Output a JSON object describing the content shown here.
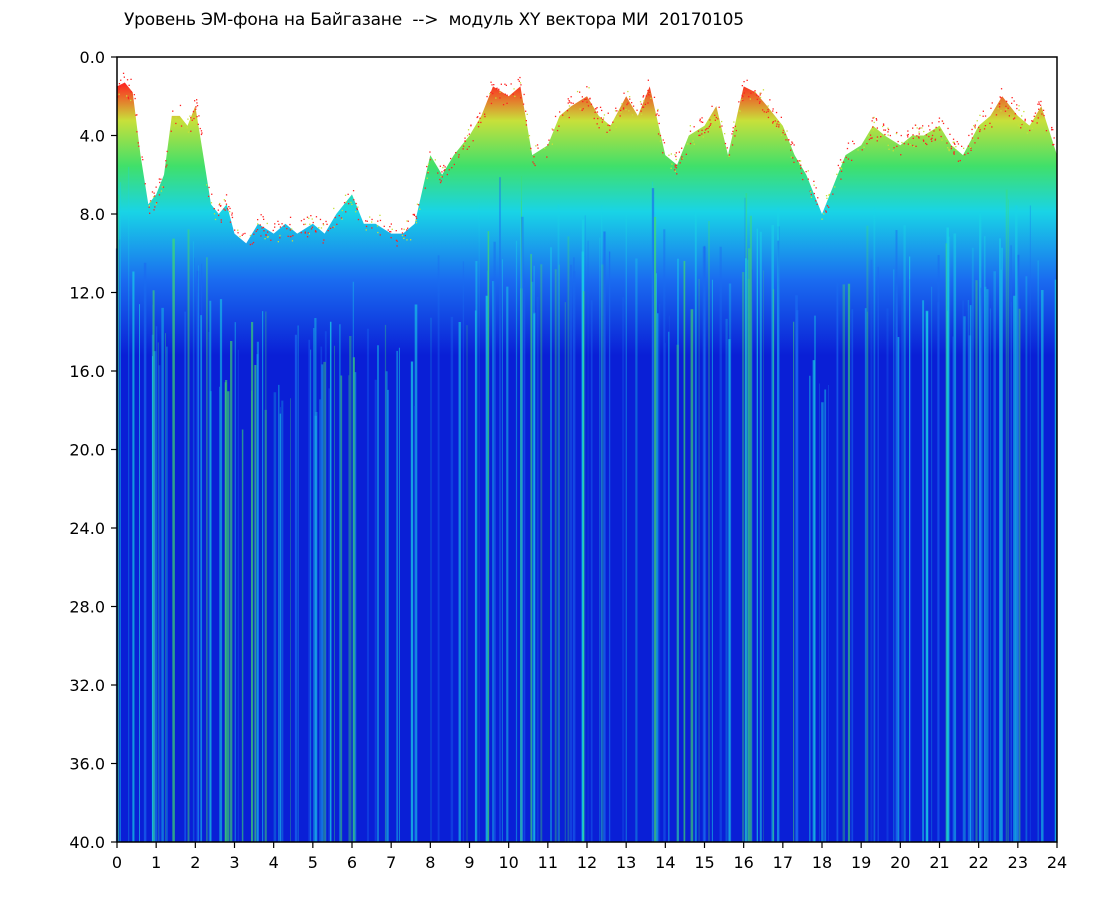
{
  "chart_data": {
    "type": "heatmap",
    "title": "Уровень ЭМ-фона на Байгазане  -->  модуль XY вектора МИ  20170105",
    "xlabel": "",
    "ylabel": "",
    "xlim": [
      0,
      24
    ],
    "ylim": [
      0,
      40
    ],
    "y_inverted": true,
    "x_ticks": [
      0,
      1,
      2,
      3,
      4,
      5,
      6,
      7,
      8,
      9,
      10,
      11,
      12,
      13,
      14,
      15,
      16,
      17,
      18,
      19,
      20,
      21,
      22,
      23,
      24
    ],
    "x_tick_labels": [
      "0",
      "1",
      "2",
      "3",
      "4",
      "5",
      "6",
      "7",
      "8",
      "9",
      "10",
      "11",
      "12",
      "13",
      "14",
      "15",
      "16",
      "17",
      "18",
      "19",
      "20",
      "21",
      "22",
      "23",
      "24"
    ],
    "y_ticks": [
      0,
      4,
      8,
      12,
      16,
      20,
      24,
      28,
      32,
      36,
      40
    ],
    "y_tick_labels": [
      "0.0",
      "4.0",
      "8.0",
      "12.0",
      "16.0",
      "20.0",
      "24.0",
      "28.0",
      "32.0",
      "36.0",
      "40.0"
    ],
    "grid": false,
    "legend": "none",
    "colormap": [
      "#0a1fd6",
      "#1a6cf0",
      "#19d4e6",
      "#40e06a",
      "#c8e03a",
      "#ff2020"
    ],
    "background": "#ffffff",
    "band_tops": [
      [
        0,
        1.5
      ],
      [
        0.2,
        1.3
      ],
      [
        0.4,
        1.8
      ],
      [
        0.6,
        5.0
      ],
      [
        0.8,
        7.5
      ],
      [
        1.0,
        7.0
      ],
      [
        1.2,
        6.0
      ],
      [
        1.4,
        3.0
      ],
      [
        1.6,
        3.0
      ],
      [
        1.8,
        3.5
      ],
      [
        2.0,
        2.5
      ],
      [
        2.2,
        5.0
      ],
      [
        2.4,
        7.5
      ],
      [
        2.6,
        8.0
      ],
      [
        2.8,
        7.5
      ],
      [
        3.0,
        9.0
      ],
      [
        3.3,
        9.5
      ],
      [
        3.6,
        8.5
      ],
      [
        4.0,
        9.0
      ],
      [
        4.3,
        8.5
      ],
      [
        4.6,
        9.0
      ],
      [
        5.0,
        8.5
      ],
      [
        5.3,
        9.0
      ],
      [
        5.6,
        8.0
      ],
      [
        6.0,
        7.0
      ],
      [
        6.3,
        8.5
      ],
      [
        6.6,
        8.5
      ],
      [
        7.0,
        9.0
      ],
      [
        7.3,
        9.0
      ],
      [
        7.6,
        8.5
      ],
      [
        8.0,
        5.0
      ],
      [
        8.3,
        6.0
      ],
      [
        8.6,
        5.0
      ],
      [
        9.0,
        4.0
      ],
      [
        9.3,
        3.0
      ],
      [
        9.6,
        1.5
      ],
      [
        10.0,
        2.0
      ],
      [
        10.3,
        1.5
      ],
      [
        10.6,
        5.0
      ],
      [
        11.0,
        4.5
      ],
      [
        11.3,
        3.0
      ],
      [
        11.6,
        2.5
      ],
      [
        12.0,
        2.0
      ],
      [
        12.3,
        3.0
      ],
      [
        12.6,
        3.5
      ],
      [
        13.0,
        2.0
      ],
      [
        13.3,
        3.0
      ],
      [
        13.6,
        1.5
      ],
      [
        14.0,
        5.0
      ],
      [
        14.3,
        5.5
      ],
      [
        14.6,
        4.0
      ],
      [
        15.0,
        3.5
      ],
      [
        15.3,
        2.5
      ],
      [
        15.6,
        5.0
      ],
      [
        16.0,
        1.5
      ],
      [
        16.3,
        1.8
      ],
      [
        16.6,
        2.5
      ],
      [
        17.0,
        3.5
      ],
      [
        17.3,
        5.0
      ],
      [
        17.6,
        6.0
      ],
      [
        18.0,
        8.0
      ],
      [
        18.3,
        6.5
      ],
      [
        18.6,
        5.0
      ],
      [
        19.0,
        4.5
      ],
      [
        19.3,
        3.5
      ],
      [
        19.6,
        4.0
      ],
      [
        20.0,
        4.5
      ],
      [
        20.3,
        4.0
      ],
      [
        20.6,
        4.0
      ],
      [
        21.0,
        3.5
      ],
      [
        21.3,
        4.5
      ],
      [
        21.6,
        5.0
      ],
      [
        22.0,
        3.5
      ],
      [
        22.3,
        3.0
      ],
      [
        22.6,
        2.0
      ],
      [
        23.0,
        3.0
      ],
      [
        23.3,
        3.5
      ],
      [
        23.6,
        2.5
      ],
      [
        24.0,
        5.0
      ]
    ]
  }
}
